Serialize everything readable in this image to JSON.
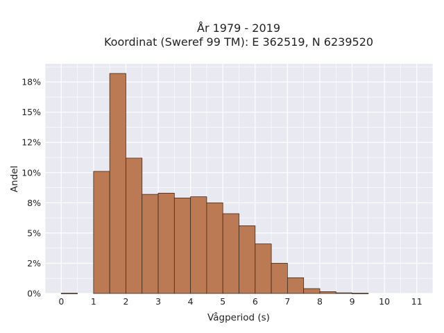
{
  "chart_data": {
    "type": "bar",
    "title_lines": [
      "År 1979 - 2019",
      "Koordinat (Sweref 99 TM): E 362519, N 6239520"
    ],
    "xlabel": "Vågperiod (s)",
    "ylabel": "Andel",
    "x_ticks": [
      "0",
      "1",
      "2",
      "3",
      "4",
      "5",
      "6",
      "7",
      "8",
      "9",
      "10",
      "11"
    ],
    "y_ticks": [
      "0%",
      "2%",
      "5%",
      "8%",
      "10%",
      "12%",
      "15%",
      "18%"
    ],
    "y_tick_values": [
      0,
      2.5,
      5,
      7.5,
      10,
      12.5,
      15,
      17.5
    ],
    "xlim": [
      -0.5,
      11.5
    ],
    "ylim": [
      0,
      19
    ],
    "bin_width": 0.5,
    "bins": [
      {
        "x0": 0.0,
        "value": 0.02
      },
      {
        "x0": 1.0,
        "value": 10.1
      },
      {
        "x0": 1.5,
        "value": 18.2
      },
      {
        "x0": 2.0,
        "value": 11.2
      },
      {
        "x0": 2.5,
        "value": 8.2
      },
      {
        "x0": 3.0,
        "value": 8.3
      },
      {
        "x0": 3.5,
        "value": 7.9
      },
      {
        "x0": 4.0,
        "value": 8.0
      },
      {
        "x0": 4.5,
        "value": 7.5
      },
      {
        "x0": 5.0,
        "value": 6.6
      },
      {
        "x0": 5.5,
        "value": 5.6
      },
      {
        "x0": 6.0,
        "value": 4.1
      },
      {
        "x0": 6.5,
        "value": 2.5
      },
      {
        "x0": 7.0,
        "value": 1.3
      },
      {
        "x0": 7.5,
        "value": 0.4
      },
      {
        "x0": 8.0,
        "value": 0.15
      },
      {
        "x0": 8.5,
        "value": 0.05
      },
      {
        "x0": 9.0,
        "value": 0.02
      }
    ],
    "colors": {
      "bar_fill": "#bb7a54",
      "bar_stroke": "#3b2a1e",
      "plot_background": "#e9e9f1",
      "grid": "#ffffff"
    },
    "grid": true,
    "legend": "none"
  }
}
